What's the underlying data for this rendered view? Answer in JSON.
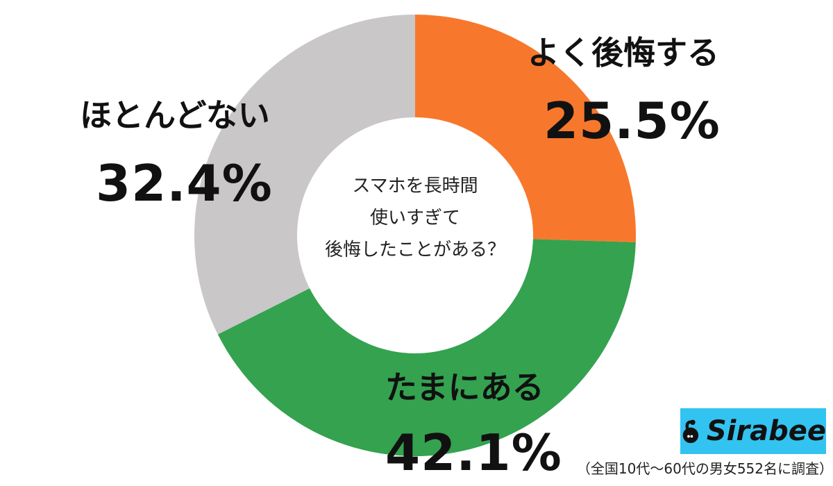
{
  "chart_data": {
    "type": "pie",
    "donut": true,
    "center_text": [
      "スマホを長時間",
      "使いすぎて",
      "後悔したことがある？"
    ],
    "categories": [
      "よく後悔する",
      "たまにある",
      "ほとんどない"
    ],
    "values": [
      25.5,
      42.1,
      32.4
    ],
    "value_labels": [
      "25.5%",
      "42.1%",
      "32.4%"
    ],
    "colors": [
      "#f7782c",
      "#34a24f",
      "#c9c7c8"
    ],
    "start": "12 o'clock, clockwise"
  },
  "logo": {
    "text": "Sirabee",
    "color": "#33c3f0"
  },
  "footnote": "（全国10代〜60代の男女552名に調査）"
}
